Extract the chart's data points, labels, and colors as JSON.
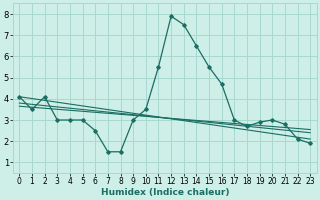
{
  "xlabel": "Humidex (Indice chaleur)",
  "background_color": "#ceeee8",
  "grid_color": "#a8d8d0",
  "line_color": "#1a6e62",
  "xlim": [
    -0.5,
    23.5
  ],
  "ylim": [
    0.5,
    8.5
  ],
  "xticks": [
    0,
    1,
    2,
    3,
    4,
    5,
    6,
    7,
    8,
    9,
    10,
    11,
    12,
    13,
    14,
    15,
    16,
    17,
    18,
    19,
    20,
    21,
    22,
    23
  ],
  "yticks": [
    1,
    2,
    3,
    4,
    5,
    6,
    7,
    8
  ],
  "main_series": [
    4.1,
    3.5,
    4.1,
    3.0,
    3.0,
    3.0,
    2.5,
    1.5,
    1.5,
    3.0,
    3.5,
    5.5,
    7.9,
    7.5,
    6.5,
    5.5,
    4.7,
    3.0,
    2.7,
    2.9,
    3.0,
    2.8,
    2.1,
    1.9
  ],
  "regression_lines": [
    {
      "x0": 0,
      "y0": 4.1,
      "x1": 23,
      "y1": 2.1
    },
    {
      "x0": 0,
      "y0": 3.8,
      "x1": 23,
      "y1": 2.4
    },
    {
      "x0": 0,
      "y0": 3.65,
      "x1": 23,
      "y1": 2.55
    }
  ]
}
